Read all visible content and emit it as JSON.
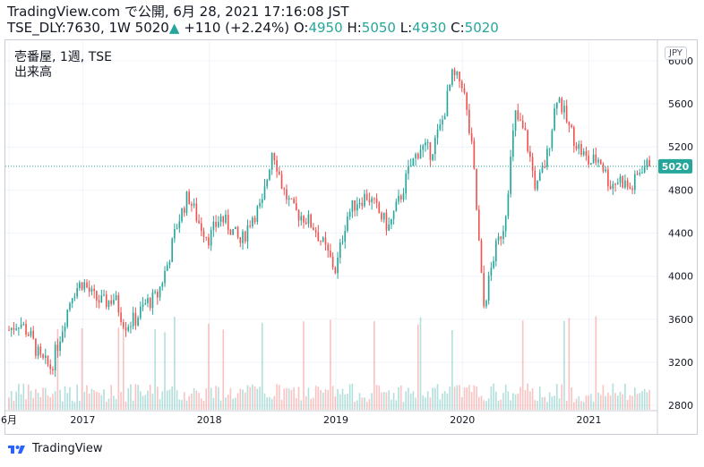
{
  "header": {
    "line1": "TradingView.com で公開, 6月 28, 2021 17:16:08 JST",
    "symbol": "TSE_DLY:7630, 1W",
    "last": "5020",
    "arrow": "▲",
    "change": "+110 (+2.24%)",
    "o_label": "O:",
    "o_val": "4950",
    "h_label": "H:",
    "h_val": "5050",
    "l_label": "L:",
    "l_val": "4930",
    "c_label": "C:",
    "c_val": "5020"
  },
  "legend": {
    "title": "壱番屋, 1週, TSE",
    "volume": "出来高"
  },
  "currency": "JPY",
  "footer": {
    "brand": "TradingView"
  },
  "colors": {
    "up": "#26a69a",
    "down": "#ef5350",
    "grid": "#f0f3fa",
    "last_label": "#26a69a"
  },
  "chart_data": {
    "type": "candlestick",
    "title": "壱番屋, 1週, TSE",
    "y_ticks": [
      2800,
      3200,
      3600,
      4000,
      4400,
      4800,
      5200,
      5600,
      6000
    ],
    "ylim": [
      2760,
      6190
    ],
    "x_ticks": [
      "6月",
      "2017",
      "2018",
      "2019",
      "2020",
      "2021"
    ],
    "last_price": 5020,
    "volume_label": "出来高",
    "anchors": [
      [
        "2016-06",
        3500
      ],
      [
        "2016-07",
        3580
      ],
      [
        "2016-08",
        3450
      ],
      [
        "2016-09",
        3220
      ],
      [
        "2016-10",
        3150
      ],
      [
        "2016-11",
        3500
      ],
      [
        "2016-12",
        3850
      ],
      [
        "2017-01",
        3950
      ],
      [
        "2017-02",
        3800
      ],
      [
        "2017-03",
        3750
      ],
      [
        "2017-04",
        3800
      ],
      [
        "2017-05",
        3550
      ],
      [
        "2017-06",
        3600
      ],
      [
        "2017-07",
        3750
      ],
      [
        "2017-08",
        3800
      ],
      [
        "2017-09",
        4100
      ],
      [
        "2017-10",
        4500
      ],
      [
        "2017-11",
        4750
      ],
      [
        "2017-12",
        4500
      ],
      [
        "2018-01",
        4350
      ],
      [
        "2018-02",
        4550
      ],
      [
        "2018-03",
        4450
      ],
      [
        "2018-04",
        4300
      ],
      [
        "2018-05",
        4550
      ],
      [
        "2018-06",
        4650
      ],
      [
        "2018-07",
        5200
      ],
      [
        "2018-08",
        4800
      ],
      [
        "2018-09",
        4600
      ],
      [
        "2018-10",
        4550
      ],
      [
        "2018-11",
        4450
      ],
      [
        "2018-12",
        4250
      ],
      [
        "2019-01",
        4050
      ],
      [
        "2019-02",
        4550
      ],
      [
        "2019-03",
        4700
      ],
      [
        "2019-04",
        4750
      ],
      [
        "2019-05",
        4600
      ],
      [
        "2019-06",
        4450
      ],
      [
        "2019-07",
        4700
      ],
      [
        "2019-08",
        5000
      ],
      [
        "2019-09",
        5200
      ],
      [
        "2019-10",
        5150
      ],
      [
        "2019-11",
        5400
      ],
      [
        "2019-12",
        5850
      ],
      [
        "2020-01",
        5800
      ],
      [
        "2020-02",
        5100
      ],
      [
        "2020-03",
        3700
      ],
      [
        "2020-04",
        4200
      ],
      [
        "2020-05",
        4500
      ],
      [
        "2020-06",
        5500
      ],
      [
        "2020-07",
        5300
      ],
      [
        "2020-08",
        4800
      ],
      [
        "2020-09",
        5100
      ],
      [
        "2020-10",
        5700
      ],
      [
        "2020-11",
        5400
      ],
      [
        "2020-12",
        5200
      ],
      [
        "2021-01",
        5050
      ],
      [
        "2021-02",
        5100
      ],
      [
        "2021-03",
        4850
      ],
      [
        "2021-04",
        4900
      ],
      [
        "2021-05",
        4800
      ],
      [
        "2021-06",
        5020
      ]
    ]
  }
}
